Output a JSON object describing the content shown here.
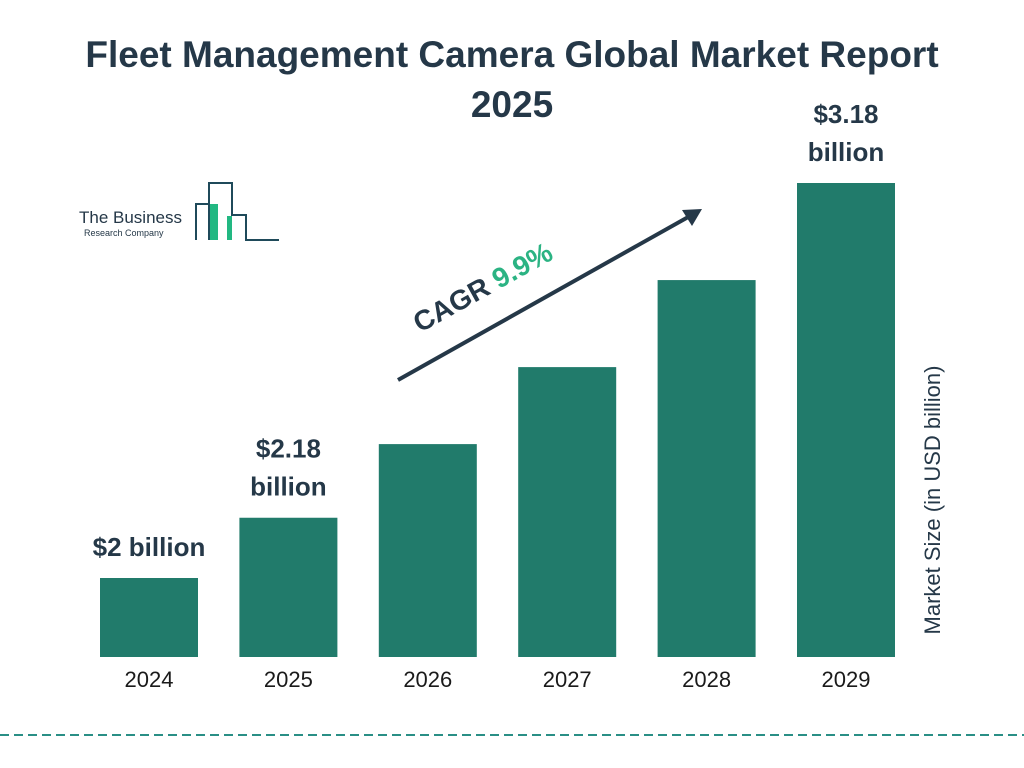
{
  "title": "Fleet Management Camera Global Market Report 2025",
  "logo": {
    "line1": "The Business",
    "line2": "Research Company"
  },
  "colors": {
    "bar": "#217b6b",
    "text": "#253848",
    "cagr_accent": "#2bb383",
    "divider": "#2a8f86",
    "logo_fill": "#22b882"
  },
  "chart_data": {
    "type": "bar",
    "title": "Fleet Management Camera Global Market Report 2025",
    "categories": [
      "2024",
      "2025",
      "2026",
      "2027",
      "2028",
      "2029"
    ],
    "values": [
      2.0,
      2.18,
      2.4,
      2.63,
      2.89,
      3.18
    ],
    "data_labels": {
      "0": [
        "$2 billion"
      ],
      "1": [
        "$2.18",
        "billion"
      ],
      "5": [
        "$3.18",
        "billion"
      ]
    },
    "ylabel": "Market Size (in USD billion)",
    "xlabel": "",
    "grid": false,
    "annotation": {
      "prefix": "CAGR ",
      "value": "9.9%"
    }
  }
}
